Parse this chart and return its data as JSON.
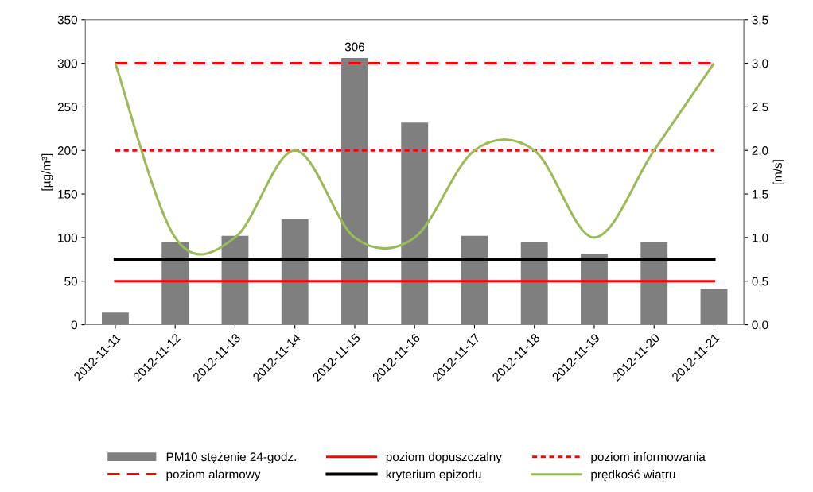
{
  "chart_data": {
    "type": "bar",
    "categories": [
      "2012-11-11",
      "2012-11-12",
      "2012-11-13",
      "2012-11-14",
      "2012-11-15",
      "2012-11-16",
      "2012-11-17",
      "2012-11-18",
      "2012-11-19",
      "2012-11-20",
      "2012-11-21"
    ],
    "series": [
      {
        "name": "PM10 stężenie 24-godz.",
        "color": "#7f7f7f",
        "values": [
          14,
          95,
          102,
          121,
          306,
          232,
          102,
          95,
          81,
          95,
          41
        ],
        "value_labels": [
          null,
          null,
          null,
          null,
          "306",
          null,
          null,
          null,
          null,
          null,
          null
        ]
      },
      {
        "name": "poziom dopuszczalny",
        "type": "line",
        "color": "#ff0000",
        "line_style": "solid",
        "values": [
          50,
          50,
          50,
          50,
          50,
          50,
          50,
          50,
          50,
          50,
          50
        ]
      },
      {
        "name": "poziom informowania",
        "type": "line",
        "color": "#ff0000",
        "line_style": "dotted",
        "values": [
          200,
          200,
          200,
          200,
          200,
          200,
          200,
          200,
          200,
          200,
          200
        ]
      },
      {
        "name": "poziom alarmowy",
        "type": "line",
        "color": "#ff0000",
        "line_style": "dashed",
        "values": [
          300,
          300,
          300,
          300,
          300,
          300,
          300,
          300,
          300,
          300,
          300
        ]
      },
      {
        "name": "kryterium epizodu",
        "type": "line",
        "color": "#000000",
        "line_style": "solid",
        "values": [
          75,
          75,
          75,
          75,
          75,
          75,
          75,
          75,
          75,
          75,
          75
        ]
      },
      {
        "name": "prędkość wiatru",
        "type": "line",
        "color": "#9bbb59",
        "line_style": "solid",
        "axis": "y2",
        "values": [
          3.0,
          1.0,
          1.0,
          2.0,
          1.0,
          1.0,
          2.0,
          2.0,
          1.0,
          2.0,
          3.0
        ]
      }
    ],
    "ylabel": "[µg/m³]",
    "y2label": "[m/s]",
    "ylim": [
      0,
      350
    ],
    "yticks": [
      0,
      50,
      100,
      150,
      200,
      250,
      300,
      350
    ],
    "y2lim": [
      0,
      3.5
    ],
    "y2ticks": [
      {
        "value": 0,
        "label": "0,0"
      },
      {
        "value": 0.5,
        "label": "0,5"
      },
      {
        "value": 1,
        "label": "1,0"
      },
      {
        "value": 1.5,
        "label": "1,5"
      },
      {
        "value": 2,
        "label": "2,0"
      },
      {
        "value": 2.5,
        "label": "2,5"
      },
      {
        "value": 3,
        "label": "3,0"
      },
      {
        "value": 3.5,
        "label": "3,5"
      }
    ],
    "grid": false,
    "legend": "bottom"
  }
}
